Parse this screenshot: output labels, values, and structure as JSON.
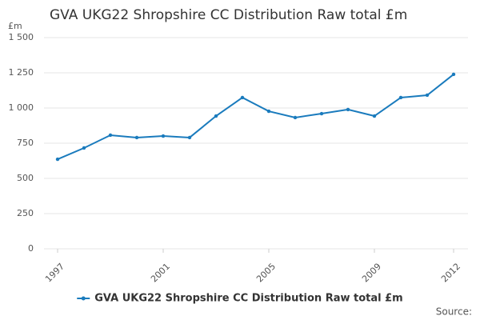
{
  "chart_data": {
    "type": "line",
    "title": "GVA UKG22 Shropshire CC Distribution Raw total £m",
    "y_unit": "£m",
    "x": [
      1997,
      1998,
      1999,
      2000,
      2001,
      2002,
      2003,
      2004,
      2005,
      2006,
      2007,
      2008,
      2009,
      2010,
      2011,
      2012
    ],
    "xlim": [
      1997,
      2012
    ],
    "xticks": [
      1997,
      2001,
      2005,
      2009,
      2012
    ],
    "ylim": [
      0,
      1500
    ],
    "yticks": [
      0,
      250,
      500,
      750,
      {
        "value": 1000,
        "label": "1 000"
      },
      {
        "value": 1250,
        "label": "1 250"
      },
      {
        "value": 1500,
        "label": "1 500"
      }
    ],
    "grid": true,
    "legend": "bottom",
    "series": [
      {
        "name": "GVA UKG22 Shropshire CC Distribution Raw total £m",
        "color": "#1a7bbd",
        "values": [
          636,
          716,
          807,
          790,
          801,
          790,
          943,
          1074,
          977,
          932,
          960,
          989,
          943,
          1074,
          1091,
          1239
        ]
      }
    ],
    "source": "Source:"
  }
}
